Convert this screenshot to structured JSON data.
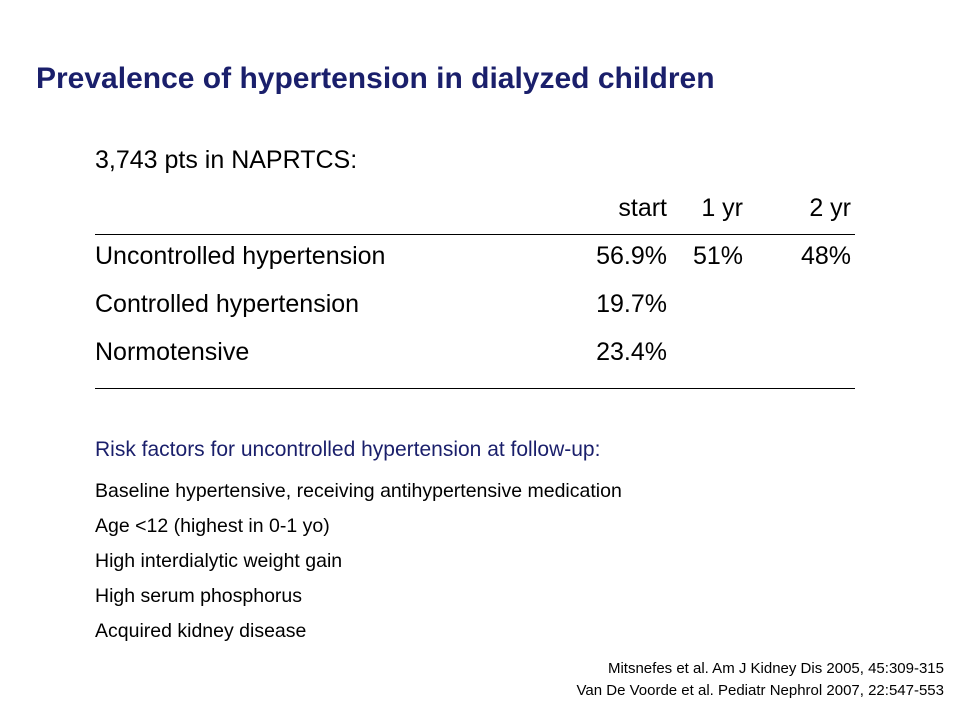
{
  "title": "Prevalence of hypertension in dialyzed children",
  "intro": "3,743 pts in NAPRTCS:",
  "table": {
    "headers": [
      "start",
      "1 yr",
      "2 yr"
    ],
    "rows": [
      {
        "label": "Uncontrolled hypertension",
        "start": "56.9%",
        "yr1": "51%",
        "yr2": "48%"
      },
      {
        "label": "Controlled hypertension",
        "start": "19.7%",
        "yr1": "",
        "yr2": ""
      },
      {
        "label": "Normotensive",
        "start": "23.4%",
        "yr1": "",
        "yr2": ""
      }
    ]
  },
  "risk": {
    "heading": "Risk factors for uncontrolled hypertension at follow-up:",
    "items": [
      "Baseline hypertensive, receiving antihypertensive medication",
      "Age <12 (highest in 0-1 yo)",
      "High interdialytic weight gain",
      "High serum phosphorus",
      "Acquired kidney disease"
    ]
  },
  "references": [
    "Mitsnefes et al. Am J Kidney Dis 2005, 45:309-315",
    "Van De Voorde et al. Pediatr Nephrol 2007, 22:547-553"
  ],
  "colors": {
    "title": "#1a1f6b",
    "accent_text": "#1a1f6b",
    "body_text": "#000000",
    "background": "#ffffff"
  }
}
